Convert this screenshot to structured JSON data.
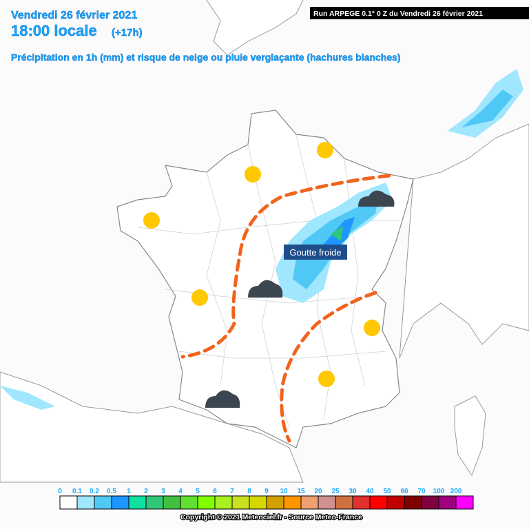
{
  "header": {
    "date": "Vendredi 26 février 2021",
    "time": "18:00 locale",
    "offset": "(+17h)",
    "subtitle": "Précipitation en 1h (mm) et risque de neige ou pluie verglaçante (hachures blanches)",
    "run": "Run ARPEGE 0.1° 0 Z du Vendredi 26 février 2021"
  },
  "annotation": "Goutte froide",
  "legend": {
    "labels": [
      0,
      0.1,
      0.2,
      0.5,
      1,
      2,
      3,
      4,
      5,
      6,
      7,
      8,
      9,
      10,
      15,
      20,
      25,
      30,
      40,
      50,
      60,
      70,
      100,
      200
    ],
    "colors": [
      "#ffffff",
      "#a0e6ff",
      "#50c8f5",
      "#1e96ff",
      "#10e0a0",
      "#30c878",
      "#40c040",
      "#60e030",
      "#80ff00",
      "#a8f020",
      "#c8e020",
      "#d7d700",
      "#d2a000",
      "#ff9600",
      "#f0a070",
      "#d09090",
      "#d07040",
      "#e03030",
      "#ff0000",
      "#c00000",
      "#800000",
      "#800040",
      "#a00080",
      "#ff00ff"
    ]
  },
  "copyright": "Copyright © 2021 Meteociel.fr - Source Meteo-France"
}
